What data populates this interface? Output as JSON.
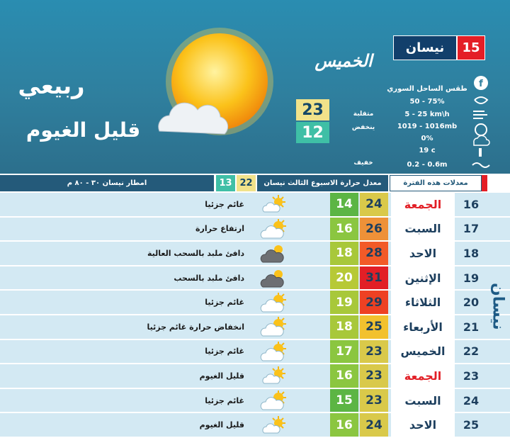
{
  "header": {
    "day_number": "15",
    "month": "نيسان",
    "weekday": "الخميس",
    "season": "ربيعي",
    "condition": "قليل الغيوم",
    "high": 23,
    "low": 12,
    "region": "طقس الساحل السوري",
    "humidity": "50 - 75%",
    "wind": "5 - 25 km\\h",
    "pressure": "1019 - 1016mb",
    "rain": "0%",
    "sea_temp": "19 c",
    "waves": "0.2 - 0.6m",
    "wind_note": "متقلبة",
    "pressure_note": "ينخفض",
    "waves_note": "خفيف"
  },
  "table": {
    "columns": {
      "period": "معدلات هذه الفترة",
      "average": "معدل حرارة الاسبوع الثالث نيسان",
      "avg_high": 22,
      "avg_low": 13,
      "rain": "امطار نيسان ٣٠ - ٨٠ م"
    },
    "side_label": "نيسان",
    "rows": [
      {
        "date": 16,
        "day": "الجمعة",
        "high": 24,
        "low": 14,
        "description": "غائم جزئيا"
      },
      {
        "date": 17,
        "day": "السبت",
        "high": 26,
        "low": 16,
        "description": "ارتفاع حرارة"
      },
      {
        "date": 18,
        "day": "الاحد",
        "high": 28,
        "low": 18,
        "description": "دافئ ملبد بالسحب العالية"
      },
      {
        "date": 19,
        "day": "الإثنين",
        "high": 31,
        "low": 20,
        "description": "دافئ ملبد بالسحب"
      },
      {
        "date": 20,
        "day": "الثلاثاء",
        "high": 29,
        "low": 19,
        "description": "غائم جزئيا"
      },
      {
        "date": 21,
        "day": "الأربعاء",
        "high": 25,
        "low": 18,
        "description": "انخفاض حرارة غائم جزئيا"
      },
      {
        "date": 22,
        "day": "الخميس",
        "high": 23,
        "low": 17,
        "description": "غائم جزئيا"
      },
      {
        "date": 23,
        "day": "الجمعة",
        "high": 23,
        "low": 16,
        "description": "قليل الغيوم"
      },
      {
        "date": 24,
        "day": "السبت",
        "high": 23,
        "low": 15,
        "description": "غائم جزئيا"
      },
      {
        "date": 25,
        "day": "الاحد",
        "high": 24,
        "low": 16,
        "description": "قليل الغيوم"
      }
    ]
  }
}
